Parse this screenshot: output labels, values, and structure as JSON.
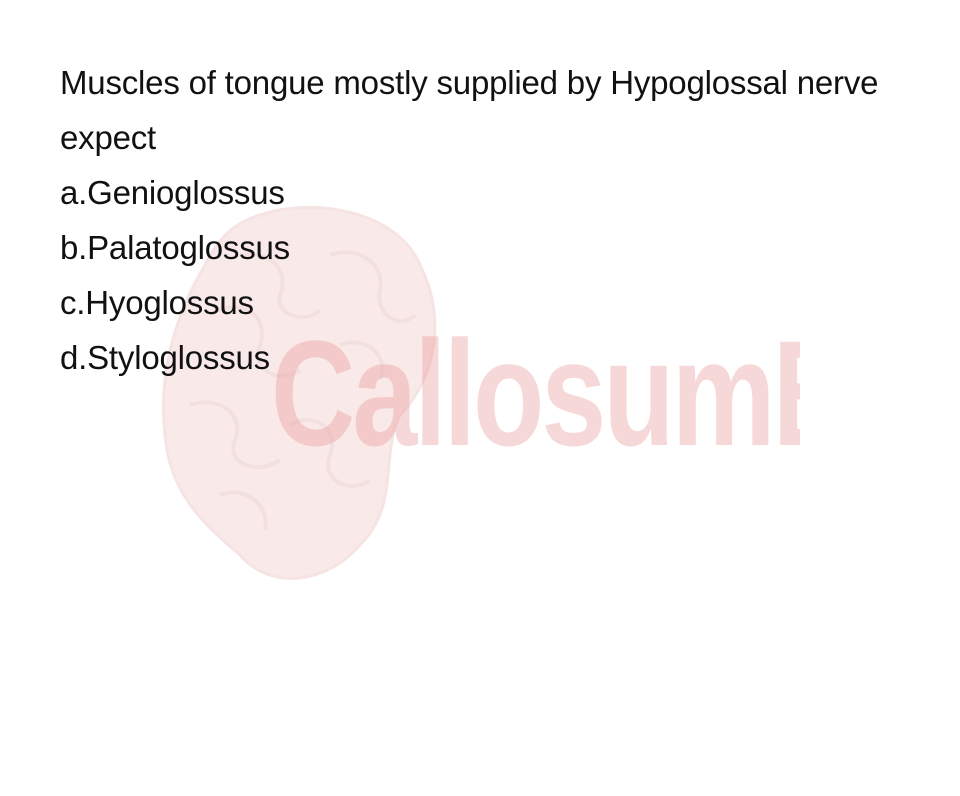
{
  "question": {
    "stem": "Muscles of tongue mostly supplied by Hypoglossal nerve expect",
    "options": [
      "a.Genioglossus",
      "b.Palatoglossus",
      "c.Hyoglossus",
      "d.Styloglossus"
    ]
  },
  "watermark": {
    "text": "CallosumBD",
    "color": "#e88f8f",
    "icon": "brain-icon"
  }
}
